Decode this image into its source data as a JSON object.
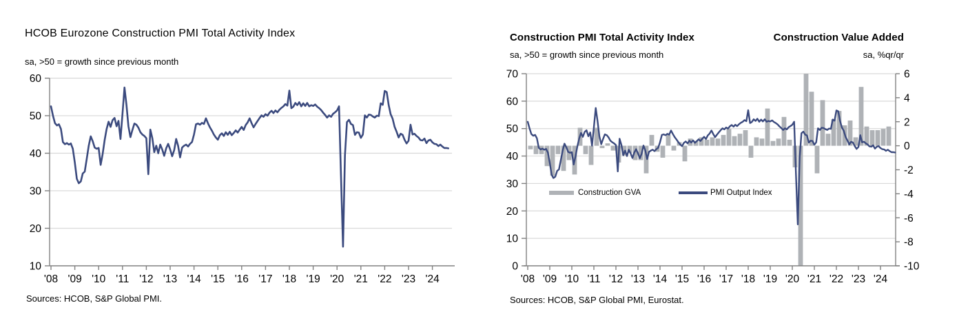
{
  "colors": {
    "pmi_line": "#3B4A7E",
    "gva_bar": "#AFB2B6",
    "gridline": "#D9D9D9",
    "axis": "#808080",
    "text": "#000000",
    "background": "#FFFFFF"
  },
  "left_chart": {
    "title": "HCOB Eurozone Construction PMI Total Activity Index",
    "subtitle": "sa, >50 = growth since previous month",
    "source": "Sources: HCOB, S&P Global PMI."
  },
  "right_chart": {
    "title_left": "Construction PMI Total Activity Index",
    "title_right": "Construction Value Added",
    "subtitle_left": "sa, >50 = growth since previous month",
    "subtitle_right": "sa, %qr/qr",
    "source": "Sources: HCOB, S&P Global PMI, Eurostat.",
    "legend": {
      "bar_label": "Construction GVA",
      "line_label": "PMI Output Index"
    }
  },
  "chart_data": [
    {
      "type": "line",
      "title": "HCOB Eurozone Construction PMI Total Activity Index",
      "subtitle": "sa, >50 = growth since previous month",
      "x_start": "2008-01",
      "frequency": "monthly",
      "x_tick_labels": [
        "'08",
        "'09",
        "'10",
        "'11",
        "'12",
        "'13",
        "'14",
        "'15",
        "'16",
        "'17",
        "'18",
        "'19",
        "'20",
        "'21",
        "'22",
        "'23",
        "'24"
      ],
      "y_ticks": [
        10,
        20,
        30,
        40,
        50,
        60
      ],
      "ylim": [
        10,
        60
      ],
      "grid": true,
      "series": [
        {
          "name": "HCOB Eurozone Construction PMI Total Activity Index",
          "values": [
            52.5,
            50.0,
            48.0,
            47.4,
            47.7,
            46.5,
            43.0,
            42.4,
            42.7,
            42.3,
            42.6,
            41.2,
            37.5,
            33.2,
            32.0,
            32.5,
            34.6,
            35.1,
            38.5,
            42.0,
            44.5,
            43.2,
            41.5,
            41.2,
            41.4,
            36.9,
            39.8,
            43.5,
            46.4,
            48.4,
            47.0,
            48.8,
            49.4,
            47.2,
            48.6,
            43.8,
            50.5,
            57.5,
            52.8,
            47.2,
            44.3,
            46.2,
            47.9,
            47.6,
            46.8,
            45.6,
            45.0,
            44.6,
            44.0,
            34.4,
            46.3,
            44.0,
            40.3,
            42.0,
            40.0,
            42.3,
            41.0,
            39.3,
            41.3,
            42.5,
            41.0,
            39.2,
            40.8,
            43.8,
            42.0,
            38.9,
            41.5,
            42.0,
            42.3,
            41.8,
            42.5,
            43.0,
            45.0,
            47.7,
            47.9,
            47.6,
            48.1,
            47.8,
            49.3,
            48.0,
            46.9,
            46.0,
            45.0,
            44.2,
            43.6,
            44.8,
            45.3,
            44.6,
            45.6,
            44.9,
            45.7,
            44.8,
            45.4,
            46.1,
            45.5,
            46.3,
            47.0,
            46.2,
            47.5,
            48.2,
            49.3,
            48.0,
            46.9,
            47.8,
            48.6,
            49.4,
            50.1,
            49.7,
            50.4,
            50.0,
            50.8,
            51.3,
            50.7,
            51.4,
            50.9,
            51.6,
            52.1,
            52.5,
            53.1,
            52.7,
            56.7,
            52.0,
            52.4,
            53.4,
            52.8,
            53.6,
            52.5,
            53.3,
            52.6,
            53.4,
            52.5,
            52.8,
            52.6,
            53.0,
            52.4,
            52.0,
            51.5,
            50.8,
            50.2,
            49.5,
            50.1,
            49.7,
            50.5,
            50.9,
            51.4,
            52.5,
            33.5,
            15.1,
            39.5,
            48.3,
            48.9,
            47.8,
            47.5,
            44.9,
            45.6,
            45.5,
            44.1,
            45.0,
            50.1,
            49.5,
            50.3,
            50.2,
            49.8,
            49.5,
            50.0,
            49.9,
            53.3,
            52.9,
            56.6,
            56.3,
            52.8,
            50.4,
            49.2,
            47.0,
            45.7,
            44.2,
            45.2,
            44.9,
            43.6,
            42.6,
            43.3,
            47.6,
            45.0,
            45.2,
            44.6,
            44.2,
            43.5,
            43.4,
            43.9,
            42.7,
            43.4,
            43.6,
            42.9,
            42.5,
            42.4,
            41.9,
            42.3,
            41.8,
            41.4,
            41.4,
            41.3
          ]
        }
      ]
    },
    {
      "type": "line+bar",
      "title": "Construction PMI Total Activity Index / Construction Value Added",
      "x_start": "2008",
      "x_tick_labels": [
        "'08",
        "'09",
        "'10",
        "'11",
        "'12",
        "'13",
        "'14",
        "'15",
        "'16",
        "'17",
        "'18",
        "'19",
        "'20",
        "'21",
        "'22",
        "'23",
        "'24"
      ],
      "left_axis": {
        "ylim": [
          0,
          70
        ],
        "ticks": [
          0,
          10,
          20,
          30,
          40,
          50,
          60,
          70
        ],
        "series": "PMI Output Index"
      },
      "right_axis": {
        "ylim": [
          -10,
          6
        ],
        "ticks": [
          -10,
          -8,
          -6,
          -4,
          -2,
          0,
          2,
          4,
          6
        ],
        "series": "Construction GVA"
      },
      "legend_position": "inside-lower-left",
      "bar_series": {
        "name": "Construction GVA",
        "frequency": "quarterly",
        "start": "2008-Q1",
        "note": "2020-Q2 and 2020-Q3 bars are clipped at the axis limits (-10 and +6)",
        "values": [
          -0.3,
          -0.7,
          -0.7,
          -1.7,
          -2.5,
          -0.7,
          -2.1,
          -1.2,
          -2.4,
          1.5,
          -0.7,
          -1.6,
          1.5,
          -0.2,
          0.2,
          -0.4,
          -1.4,
          -0.8,
          -0.6,
          -1.2,
          -1.2,
          -2.3,
          0.9,
          -0.5,
          -1.0,
          0.9,
          -0.4,
          0.3,
          -1.3,
          0.6,
          0.4,
          0.7,
          0.5,
          0.7,
          0.6,
          0.9,
          1.4,
          0.8,
          1.0,
          1.3,
          -1.0,
          0.7,
          0.6,
          3.1,
          0.4,
          0.6,
          2.4,
          0.5,
          -1.8,
          -10.0,
          6.0,
          4.5,
          -2.3,
          3.8,
          1.0,
          2.2,
          2.9,
          1.7,
          2.1,
          0.7,
          4.9,
          1.6,
          1.3,
          1.3,
          1.4,
          1.6
        ]
      },
      "line_series": {
        "name": "PMI Output Index",
        "frequency": "monthly",
        "start": "2008-01",
        "values": [
          52.5,
          50.0,
          48.0,
          47.4,
          47.7,
          46.5,
          43.0,
          42.4,
          42.7,
          42.3,
          42.6,
          41.2,
          37.5,
          33.2,
          32.0,
          32.5,
          34.6,
          35.1,
          38.5,
          42.0,
          44.5,
          43.2,
          41.5,
          41.2,
          41.4,
          36.9,
          39.8,
          43.5,
          46.4,
          48.4,
          47.0,
          48.8,
          49.4,
          47.2,
          48.6,
          43.8,
          50.5,
          57.5,
          52.8,
          47.2,
          44.3,
          46.2,
          47.9,
          47.6,
          46.8,
          45.6,
          45.0,
          44.6,
          44.0,
          34.4,
          46.3,
          44.0,
          40.3,
          42.0,
          40.0,
          42.3,
          41.0,
          39.3,
          41.3,
          42.5,
          41.0,
          39.2,
          40.8,
          43.8,
          42.0,
          38.9,
          41.5,
          42.0,
          42.3,
          41.8,
          42.5,
          43.0,
          45.0,
          47.7,
          47.9,
          47.6,
          48.1,
          47.8,
          49.3,
          48.0,
          46.9,
          46.0,
          45.0,
          44.2,
          43.6,
          44.8,
          45.3,
          44.6,
          45.6,
          44.9,
          45.7,
          44.8,
          45.4,
          46.1,
          45.5,
          46.3,
          47.0,
          46.2,
          47.5,
          48.2,
          49.3,
          48.0,
          46.9,
          47.8,
          48.6,
          49.4,
          50.1,
          49.7,
          50.4,
          50.0,
          50.8,
          51.3,
          50.7,
          51.4,
          50.9,
          51.6,
          52.1,
          52.5,
          53.1,
          52.7,
          56.7,
          52.0,
          52.4,
          53.4,
          52.8,
          53.6,
          52.5,
          53.3,
          52.6,
          53.4,
          52.5,
          52.8,
          52.6,
          53.0,
          52.4,
          52.0,
          51.5,
          50.8,
          50.2,
          49.5,
          50.1,
          49.7,
          50.5,
          50.9,
          51.4,
          52.5,
          33.5,
          15.1,
          39.5,
          48.3,
          48.9,
          47.8,
          47.5,
          44.9,
          45.6,
          45.5,
          44.1,
          45.0,
          50.1,
          49.5,
          50.3,
          50.2,
          49.8,
          49.5,
          50.0,
          49.9,
          53.3,
          52.9,
          56.6,
          56.3,
          52.8,
          50.4,
          49.2,
          47.0,
          45.7,
          44.2,
          45.2,
          44.9,
          43.6,
          42.6,
          43.3,
          47.6,
          45.0,
          45.2,
          44.6,
          44.2,
          43.5,
          43.4,
          43.9,
          42.7,
          43.4,
          43.6,
          42.9,
          42.5,
          42.4,
          41.9,
          42.3,
          41.8,
          41.4,
          41.4,
          41.3
        ]
      }
    }
  ]
}
